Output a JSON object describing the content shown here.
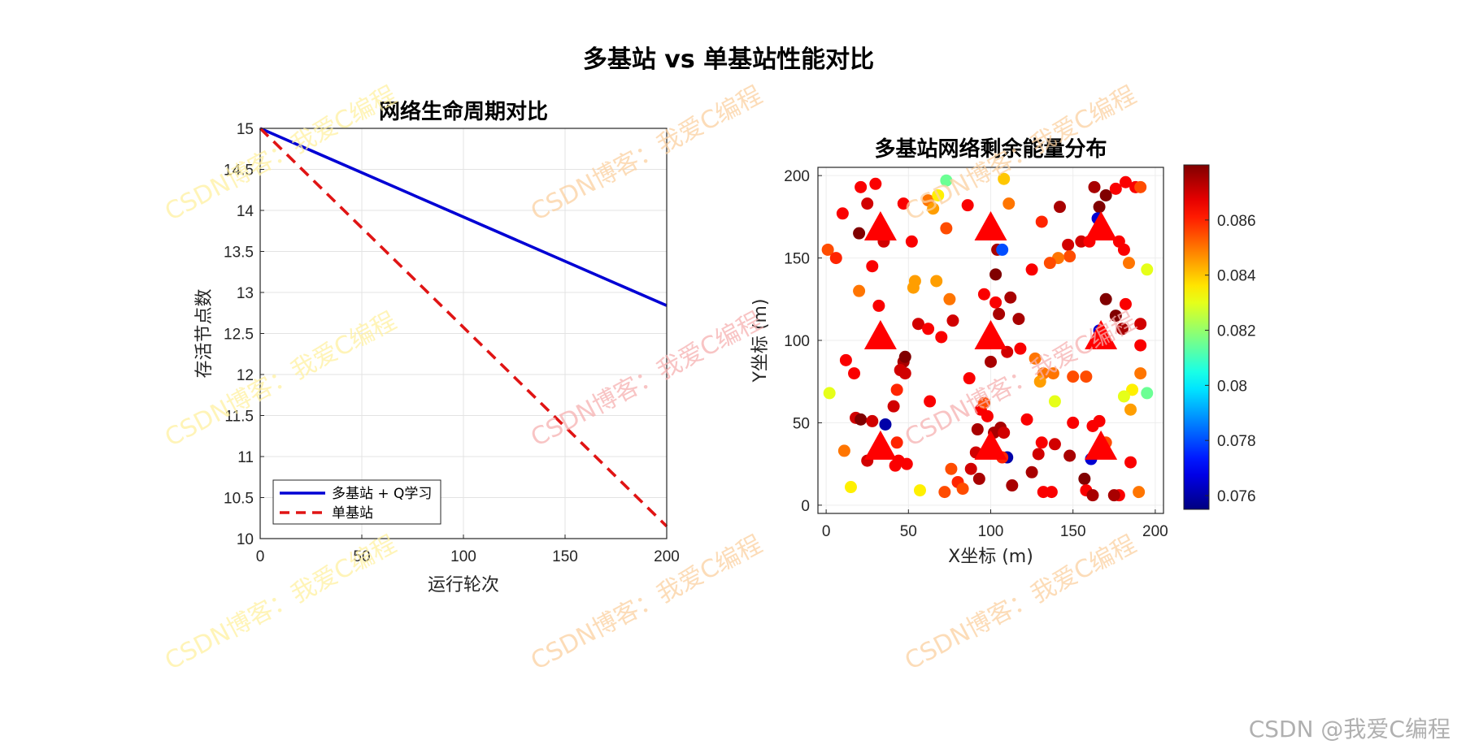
{
  "figure_title": "多基站 vs 单基站性能对比",
  "credit": "CSDN @我爱C编程",
  "watermark": "CSDN博客：我爱C编程",
  "chart_data": [
    {
      "type": "line",
      "title": "网络生命周期对比",
      "xlabel": "运行轮次",
      "ylabel": "存活节点数",
      "xlim": [
        0,
        200
      ],
      "ylim": [
        10,
        15
      ],
      "xticks": [
        0,
        50,
        100,
        150,
        200
      ],
      "yticks": [
        10,
        10.5,
        11,
        11.5,
        12,
        12.5,
        13,
        13.5,
        14,
        14.5,
        15
      ],
      "grid": true,
      "legend": "bottom-left",
      "series": [
        {
          "name": "多基站 + Q学习",
          "color": "#0000d4",
          "style": "solid",
          "x": [
            0,
            200
          ],
          "y": [
            15,
            12.84
          ]
        },
        {
          "name": "单基站",
          "color": "#e01414",
          "style": "dashed",
          "x": [
            0,
            200
          ],
          "y": [
            15,
            10.15
          ]
        }
      ]
    },
    {
      "type": "scatter",
      "title": "多基站网络剩余能量分布",
      "xlabel": "X坐标 (m)",
      "ylabel": "Y坐标 (m)",
      "xlim": [
        -5,
        205
      ],
      "ylim": [
        -5,
        205
      ],
      "xticks": [
        0,
        50,
        100,
        150,
        200
      ],
      "yticks": [
        0,
        50,
        100,
        150,
        200
      ],
      "colormap": "jet",
      "colorbar": {
        "range": [
          0.0755,
          0.088
        ],
        "ticks": [
          0.076,
          0.078,
          0.08,
          0.082,
          0.084,
          0.086
        ],
        "tick_labels": [
          "0.076",
          "0.078",
          "0.08",
          "0.082",
          "0.084",
          "0.086"
        ]
      },
      "base_stations": {
        "color": "#ff0000",
        "points": [
          [
            33,
            168
          ],
          [
            100,
            168
          ],
          [
            167,
            168
          ],
          [
            33,
            102
          ],
          [
            100,
            102
          ],
          [
            167,
            102
          ],
          [
            33,
            35
          ],
          [
            100,
            35
          ],
          [
            167,
            35
          ]
        ]
      },
      "nodes": [
        [
          10,
          177,
          0.0865
        ],
        [
          21,
          193,
          0.0865
        ],
        [
          25,
          183,
          0.087
        ],
        [
          30,
          195,
          0.0865
        ],
        [
          35,
          160,
          0.087
        ],
        [
          20,
          165,
          0.088
        ],
        [
          47,
          183,
          0.0865
        ],
        [
          1,
          155,
          0.0855
        ],
        [
          6,
          150,
          0.086
        ],
        [
          28,
          145,
          0.0865
        ],
        [
          52,
          160,
          0.0865
        ],
        [
          62,
          185,
          0.085
        ],
        [
          68,
          188,
          0.0835
        ],
        [
          73,
          197,
          0.0815
        ],
        [
          65,
          180,
          0.0845
        ],
        [
          73,
          168,
          0.0855
        ],
        [
          86,
          182,
          0.0865
        ],
        [
          104,
          155,
          0.0875
        ],
        [
          107,
          155,
          0.078
        ],
        [
          111,
          183,
          0.085
        ],
        [
          103,
          140,
          0.088
        ],
        [
          108,
          198,
          0.084
        ],
        [
          131,
          172,
          0.086
        ],
        [
          142,
          181,
          0.0875
        ],
        [
          147,
          158,
          0.087
        ],
        [
          148,
          151,
          0.0855
        ],
        [
          141,
          150,
          0.085
        ],
        [
          136,
          147,
          0.0855
        ],
        [
          125,
          143,
          0.0865
        ],
        [
          155,
          160,
          0.087
        ],
        [
          163,
          193,
          0.0875
        ],
        [
          166,
          181,
          0.088
        ],
        [
          170,
          188,
          0.088
        ],
        [
          165,
          174,
          0.0765
        ],
        [
          160,
          160,
          0.0865
        ],
        [
          178,
          160,
          0.0865
        ],
        [
          176,
          192,
          0.0865
        ],
        [
          182,
          196,
          0.0865
        ],
        [
          188,
          193,
          0.0865
        ],
        [
          191,
          193,
          0.0855
        ],
        [
          181,
          155,
          0.0865
        ],
        [
          184,
          147,
          0.085
        ],
        [
          195,
          143,
          0.083
        ],
        [
          53,
          132,
          0.0845
        ],
        [
          54,
          136,
          0.0845
        ],
        [
          67,
          136,
          0.0845
        ],
        [
          20,
          130,
          0.085
        ],
        [
          75,
          125,
          0.085
        ],
        [
          96,
          128,
          0.0865
        ],
        [
          103,
          123,
          0.0865
        ],
        [
          112,
          126,
          0.0875
        ],
        [
          105,
          116,
          0.0875
        ],
        [
          117,
          113,
          0.0875
        ],
        [
          77,
          112,
          0.087
        ],
        [
          56,
          110,
          0.087
        ],
        [
          62,
          107,
          0.0865
        ],
        [
          70,
          102,
          0.0865
        ],
        [
          32,
          121,
          0.0865
        ],
        [
          12,
          88,
          0.0865
        ],
        [
          17,
          80,
          0.0865
        ],
        [
          47,
          87,
          0.0875
        ],
        [
          48,
          90,
          0.088
        ],
        [
          45,
          82,
          0.087
        ],
        [
          48,
          80,
          0.087
        ],
        [
          43,
          70,
          0.086
        ],
        [
          100,
          87,
          0.0875
        ],
        [
          110,
          93,
          0.087
        ],
        [
          118,
          95,
          0.0865
        ],
        [
          127,
          89,
          0.085
        ],
        [
          132,
          80,
          0.085
        ],
        [
          130,
          75,
          0.0845
        ],
        [
          138,
          80,
          0.085
        ],
        [
          150,
          78,
          0.0855
        ],
        [
          158,
          78,
          0.0855
        ],
        [
          166,
          106,
          0.0765
        ],
        [
          170,
          125,
          0.088
        ],
        [
          176,
          115,
          0.088
        ],
        [
          180,
          107,
          0.0875
        ],
        [
          182,
          122,
          0.0865
        ],
        [
          191,
          110,
          0.087
        ],
        [
          191,
          97,
          0.0865
        ],
        [
          191,
          80,
          0.085
        ],
        [
          186,
          70,
          0.0835
        ],
        [
          181,
          66,
          0.083
        ],
        [
          195,
          68,
          0.0815
        ],
        [
          185,
          58,
          0.0845
        ],
        [
          185,
          26,
          0.0865
        ],
        [
          190,
          8,
          0.085
        ],
        [
          2,
          68,
          0.083
        ],
        [
          11,
          33,
          0.085
        ],
        [
          15,
          11,
          0.0835
        ],
        [
          18,
          53,
          0.087
        ],
        [
          21,
          52,
          0.088
        ],
        [
          25,
          27,
          0.087
        ],
        [
          28,
          51,
          0.087
        ],
        [
          36,
          49,
          0.076
        ],
        [
          41,
          60,
          0.087
        ],
        [
          43,
          38,
          0.086
        ],
        [
          44,
          27,
          0.0865
        ],
        [
          42,
          24,
          0.0865
        ],
        [
          49,
          25,
          0.0865
        ],
        [
          57,
          9,
          0.0835
        ],
        [
          63,
          63,
          0.0865
        ],
        [
          76,
          22,
          0.0855
        ],
        [
          80,
          14,
          0.086
        ],
        [
          83,
          10,
          0.0855
        ],
        [
          87,
          77,
          0.0865
        ],
        [
          92,
          46,
          0.0875
        ],
        [
          94,
          58,
          0.0865
        ],
        [
          96,
          62,
          0.0855
        ],
        [
          98,
          54,
          0.0865
        ],
        [
          102,
          44,
          0.0875
        ],
        [
          106,
          47,
          0.0875
        ],
        [
          108,
          44,
          0.087
        ],
        [
          110,
          29,
          0.076
        ],
        [
          107,
          29,
          0.086
        ],
        [
          113,
          12,
          0.0875
        ],
        [
          122,
          52,
          0.0865
        ],
        [
          125,
          20,
          0.0875
        ],
        [
          129,
          31,
          0.087
        ],
        [
          131,
          38,
          0.0865
        ],
        [
          132,
          8,
          0.0865
        ],
        [
          139,
          63,
          0.083
        ],
        [
          139,
          37,
          0.087
        ],
        [
          137,
          8,
          0.0865
        ],
        [
          148,
          30,
          0.0875
        ],
        [
          150,
          50,
          0.0865
        ],
        [
          157,
          16,
          0.088
        ],
        [
          158,
          9,
          0.0865
        ],
        [
          161,
          28,
          0.0765
        ],
        [
          162,
          6,
          0.0875
        ],
        [
          162,
          48,
          0.0865
        ],
        [
          166,
          51,
          0.0865
        ],
        [
          170,
          38,
          0.0855
        ],
        [
          178,
          6,
          0.0865
        ],
        [
          175,
          6,
          0.0875
        ],
        [
          91,
          32,
          0.087
        ],
        [
          88,
          22,
          0.087
        ],
        [
          93,
          16,
          0.0875
        ],
        [
          72,
          8,
          0.0855
        ]
      ]
    }
  ]
}
